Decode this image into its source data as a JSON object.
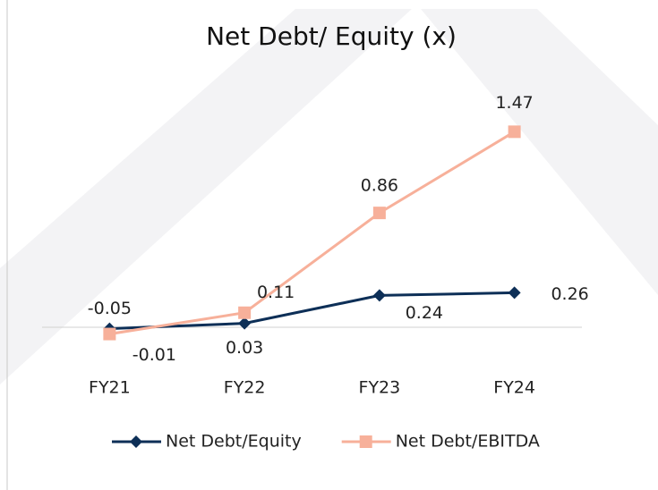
{
  "chart_data": {
    "type": "line",
    "title": "Net Debt/ Equity (x)",
    "categories": [
      "FY21",
      "FY22",
      "FY23",
      "FY24"
    ],
    "series": [
      {
        "name": "Net Debt/Equity",
        "color": "#0d2f57",
        "marker": "diamond",
        "values": [
          -0.01,
          0.03,
          0.24,
          0.26
        ]
      },
      {
        "name": "Net Debt/EBITDA",
        "color": "#f7b09a",
        "marker": "square",
        "values": [
          -0.05,
          0.11,
          0.86,
          1.47
        ]
      }
    ],
    "ylim": [
      -0.1,
      1.6
    ],
    "legend": "bottom"
  }
}
